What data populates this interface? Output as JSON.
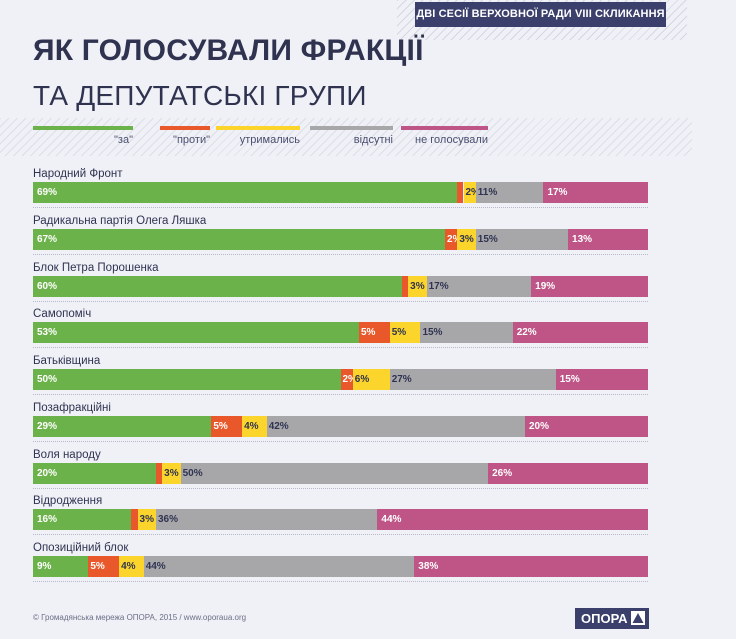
{
  "header": {
    "badge": "ДВІ СЕСІЇ ВЕРХОВНОЇ РАДИ VIII СКЛИКАННЯ",
    "title": "ЯК ГОЛОСУВАЛИ ФРАКЦІЇ",
    "subtitle": "ТА ДЕПУТАТСЬКІ ГРУПИ"
  },
  "colors": {
    "za": "#6cb24a",
    "proty": "#e9582a",
    "utrymalys": "#fbd52b",
    "vidsutni": "#a7a7aa",
    "ne_holosuvaly": "#be5586",
    "text_dark": "#2f3350",
    "text_light": "#ffffff"
  },
  "chart_data": {
    "type": "bar",
    "stacked": true,
    "orientation": "horizontal",
    "unit": "%",
    "legend_position": "top",
    "categories": [
      "Народний Фронт",
      "Радикальна партія Олега Ляшка",
      "Блок Петра Порошенка",
      "Самопоміч",
      "Батьківщина",
      "Позафракційні",
      "Воля народу",
      "Відродження",
      "Опозиційний блок"
    ],
    "series": [
      {
        "name": "\"за\"",
        "key": "za",
        "values": [
          69,
          67,
          60,
          53,
          50,
          29,
          20,
          16,
          9
        ]
      },
      {
        "name": "\"проти\"",
        "key": "proty",
        "values": [
          1,
          2,
          1,
          5,
          2,
          5,
          1,
          1,
          5
        ]
      },
      {
        "name": "утримались",
        "key": "utrymalys",
        "values": [
          2,
          3,
          3,
          5,
          6,
          4,
          3,
          3,
          4
        ]
      },
      {
        "name": "відсутні",
        "key": "vidsutni",
        "values": [
          11,
          15,
          17,
          15,
          27,
          42,
          50,
          36,
          44
        ]
      },
      {
        "name": "не голосували",
        "key": "ne_holosuvaly",
        "values": [
          17,
          13,
          19,
          22,
          15,
          20,
          26,
          44,
          38
        ]
      }
    ],
    "data_labels": [
      [
        "69%",
        "",
        "2%",
        "11%",
        "17%"
      ],
      [
        "67%",
        "2%",
        "3%",
        "15%",
        "13%"
      ],
      [
        "60%",
        "",
        "3%",
        "17%",
        "19%"
      ],
      [
        "53%",
        "5%",
        "5%",
        "15%",
        "22%"
      ],
      [
        "50%",
        "2%",
        "6%",
        "27%",
        "15%"
      ],
      [
        "29%",
        "5%",
        "4%",
        "42%",
        "20%"
      ],
      [
        "20%",
        "",
        "3%",
        "50%",
        "26%"
      ],
      [
        "16%",
        "",
        "3%",
        "36%",
        "44%"
      ],
      [
        "9%",
        "5%",
        "4%",
        "44%",
        "38%"
      ]
    ]
  },
  "footer": {
    "credit": "© Громадянська мережа ОПОРА, 2015 / www.oporaua.org",
    "logo": "ОПОРА"
  }
}
